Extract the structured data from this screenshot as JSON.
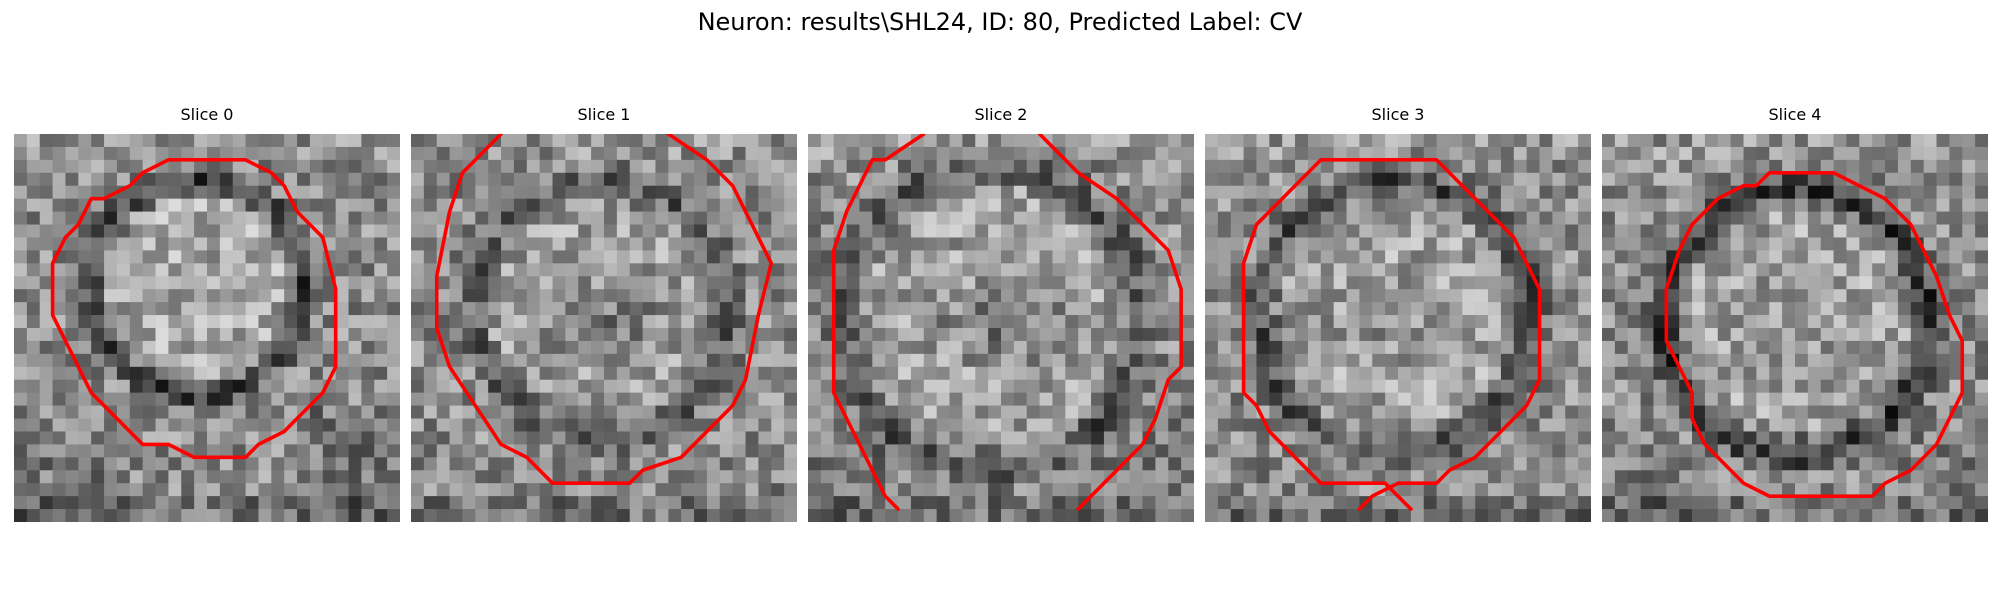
{
  "figure": {
    "title": "Neuron: results\\SHL24, ID: 80, Predicted Label: CV"
  },
  "contour_color": "#ff0000",
  "colormap": "grayscale",
  "grid_size": 30,
  "panels": [
    {
      "label": "Slice 0"
    },
    {
      "label": "Slice 1"
    },
    {
      "label": "Slice 2"
    },
    {
      "label": "Slice 3"
    },
    {
      "label": "Slice 4"
    }
  ]
}
